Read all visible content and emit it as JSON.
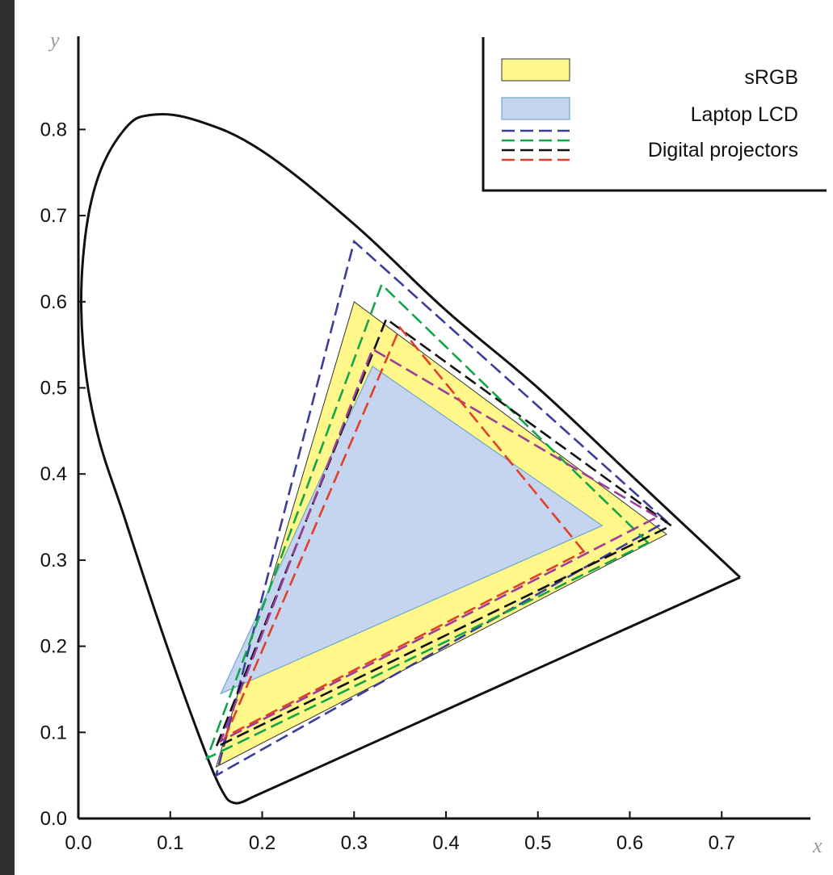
{
  "chart_data": {
    "type": "line",
    "title": "",
    "xlabel": "x",
    "ylabel": "y",
    "xlim": [
      0.0,
      0.78
    ],
    "ylim": [
      0.0,
      0.86
    ],
    "grid": false,
    "legend_position": "top-right",
    "x_ticks": [
      "0.0",
      "0.1",
      "0.2",
      "0.3",
      "0.4",
      "0.5",
      "0.6",
      "0.7"
    ],
    "y_ticks": [
      "0.0",
      "0.1",
      "0.2",
      "0.3",
      "0.4",
      "0.5",
      "0.6",
      "0.7",
      "0.8"
    ],
    "spectral_locus": {
      "color": "#111111",
      "points": [
        [
          0.72,
          0.28
        ],
        [
          0.6,
          0.4
        ],
        [
          0.5,
          0.5
        ],
        [
          0.4,
          0.59
        ],
        [
          0.3,
          0.69
        ],
        [
          0.2,
          0.775
        ],
        [
          0.13,
          0.81
        ],
        [
          0.08,
          0.817
        ],
        [
          0.05,
          0.8
        ],
        [
          0.02,
          0.74
        ],
        [
          0.005,
          0.65
        ],
        [
          0.005,
          0.55
        ],
        [
          0.02,
          0.45
        ],
        [
          0.05,
          0.35
        ],
        [
          0.09,
          0.22
        ],
        [
          0.13,
          0.1
        ],
        [
          0.155,
          0.035
        ],
        [
          0.17,
          0.018
        ],
        [
          0.19,
          0.025
        ],
        [
          0.72,
          0.28
        ]
      ]
    },
    "series": [
      {
        "name": "sRGB",
        "style": "filled",
        "fill": "#fff78a",
        "stroke": "#333333",
        "points": [
          [
            0.64,
            0.33
          ],
          [
            0.3,
            0.6
          ],
          [
            0.15,
            0.06
          ]
        ]
      },
      {
        "name": "Laptop LCD",
        "style": "filled",
        "fill": "#c5d5ef",
        "stroke": "#6fa7cc",
        "points": [
          [
            0.57,
            0.34
          ],
          [
            0.32,
            0.525
          ],
          [
            0.155,
            0.145
          ]
        ]
      },
      {
        "name": "Digital projectors",
        "style": "dashed",
        "projectors": [
          {
            "color": "#3c3c9a",
            "points": [
              [
                0.64,
                0.345
              ],
              [
                0.3,
                0.67
              ],
              [
                0.15,
                0.05
              ]
            ]
          },
          {
            "color": "#12a54a",
            "points": [
              [
                0.62,
                0.32
              ],
              [
                0.33,
                0.62
              ],
              [
                0.14,
                0.07
              ]
            ]
          },
          {
            "color": "#111111",
            "points": [
              [
                0.645,
                0.34
              ],
              [
                0.335,
                0.58
              ],
              [
                0.15,
                0.083
              ]
            ]
          },
          {
            "color": "#9b3e9a",
            "points": [
              [
                0.63,
                0.35
              ],
              [
                0.32,
                0.545
              ],
              [
                0.155,
                0.09
              ]
            ]
          },
          {
            "color": "#e0402a",
            "points": [
              [
                0.55,
                0.31
              ],
              [
                0.35,
                0.57
              ],
              [
                0.16,
                0.095
              ]
            ]
          }
        ]
      }
    ]
  }
}
